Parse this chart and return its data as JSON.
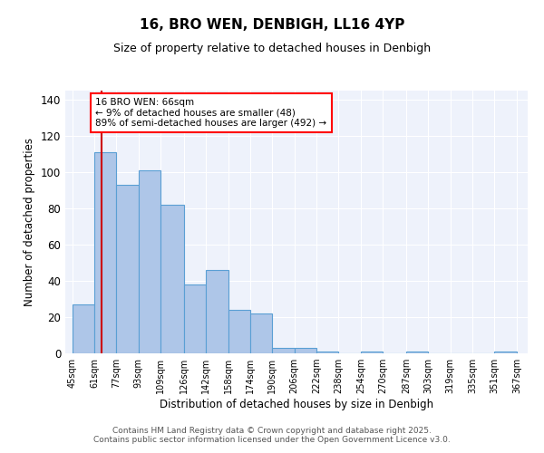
{
  "title1": "16, BRO WEN, DENBIGH, LL16 4YP",
  "title2": "Size of property relative to detached houses in Denbigh",
  "xlabel": "Distribution of detached houses by size in Denbigh",
  "ylabel": "Number of detached properties",
  "bar_left_edges": [
    45,
    61,
    77,
    93,
    109,
    126,
    142,
    158,
    174,
    190,
    206,
    222,
    238,
    254,
    270,
    287,
    303,
    319,
    335,
    351
  ],
  "bar_widths": [
    16,
    16,
    16,
    16,
    17,
    16,
    16,
    16,
    16,
    16,
    16,
    16,
    16,
    16,
    17,
    16,
    16,
    16,
    16,
    16
  ],
  "bar_heights": [
    27,
    111,
    93,
    101,
    82,
    38,
    46,
    24,
    22,
    3,
    3,
    1,
    0,
    1,
    0,
    1,
    0,
    0,
    0,
    1
  ],
  "tick_labels": [
    "45sqm",
    "61sqm",
    "77sqm",
    "93sqm",
    "109sqm",
    "126sqm",
    "142sqm",
    "158sqm",
    "174sqm",
    "190sqm",
    "206sqm",
    "222sqm",
    "238sqm",
    "254sqm",
    "270sqm",
    "287sqm",
    "303sqm",
    "319sqm",
    "335sqm",
    "351sqm",
    "367sqm"
  ],
  "tick_positions": [
    45,
    61,
    77,
    93,
    109,
    126,
    142,
    158,
    174,
    190,
    206,
    222,
    238,
    254,
    270,
    287,
    303,
    319,
    335,
    351,
    367
  ],
  "bar_color": "#aec6e8",
  "bar_edge_color": "#5a9fd4",
  "property_line_x": 66,
  "property_line_color": "#cc0000",
  "annotation_text_line1": "16 BRO WEN: 66sqm",
  "annotation_text_line2": "← 9% of detached houses are smaller (48)",
  "annotation_text_line3": "89% of semi-detached houses are larger (492) →",
  "ylim": [
    0,
    145
  ],
  "xlim": [
    40,
    375
  ],
  "yticks": [
    0,
    20,
    40,
    60,
    80,
    100,
    120,
    140
  ],
  "background_color": "#eef2fb",
  "footer_line1": "Contains HM Land Registry data © Crown copyright and database right 2025.",
  "footer_line2": "Contains public sector information licensed under the Open Government Licence v3.0."
}
